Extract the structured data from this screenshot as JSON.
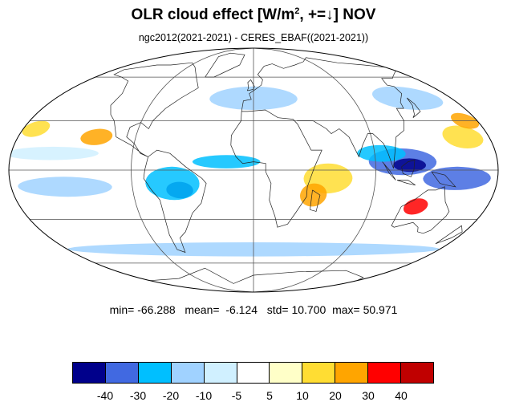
{
  "title": {
    "main": "OLR cloud effect [W/m",
    "sup": "2",
    "rest": ", +=↓]  NOV"
  },
  "subtitle": "ngc2012(2021-2021) - CERES_EBAF((2021-2021))",
  "stats": {
    "min_label": "min=",
    "min": "-66.288",
    "mean_label": "mean=",
    "mean": "-6.124",
    "std_label": "std=",
    "std": "10.700",
    "max_label": "max=",
    "max": "50.971"
  },
  "colorbar": {
    "colors": [
      "#00008b",
      "#4169e1",
      "#00bfff",
      "#a0d2ff",
      "#d0f0ff",
      "#ffffff",
      "#ffffc8",
      "#ffdd33",
      "#ffa500",
      "#ff0000",
      "#c00000"
    ],
    "labels": [
      "-40",
      "-30",
      "-20",
      "-10",
      "-5",
      "5",
      "10",
      "20",
      "30",
      "40"
    ]
  },
  "map": {
    "projection": "Mollweide",
    "blobs": [
      {
        "lon": 110,
        "lat": 5,
        "rlon": 25,
        "rlat": 8,
        "color": "#4169e1"
      },
      {
        "lon": 115,
        "lat": 3,
        "rlon": 12,
        "rlat": 4,
        "color": "#00008b"
      },
      {
        "lon": 150,
        "lat": -5,
        "rlon": 25,
        "rlat": 7,
        "color": "#4169e1"
      },
      {
        "lon": 95,
        "lat": 10,
        "rlon": 18,
        "rlat": 5,
        "color": "#00bfff"
      },
      {
        "lon": 125,
        "lat": -22,
        "rlon": 9,
        "rlat": 5,
        "color": "#ff0000"
      },
      {
        "lon": 55,
        "lat": -5,
        "rlon": 18,
        "rlat": 9,
        "color": "#ffdd33"
      },
      {
        "lon": 45,
        "lat": -15,
        "rlon": 10,
        "rlat": 7,
        "color": "#ffa500"
      },
      {
        "lon": -55,
        "lat": -12,
        "rlon": 10,
        "rlat": 5,
        "color": "#00008b"
      },
      {
        "lon": -60,
        "lat": -8,
        "rlon": 20,
        "rlat": 10,
        "color": "#00bfff"
      },
      {
        "lon": -120,
        "lat": 20,
        "rlon": 12,
        "rlat": 5,
        "color": "#ffa500"
      },
      {
        "lon": 160,
        "lat": 20,
        "rlon": 15,
        "rlat": 7,
        "color": "#ffdd33"
      },
      {
        "lon": -170,
        "lat": 25,
        "rlon": 10,
        "rlat": 5,
        "color": "#ffdd33"
      },
      {
        "lon": 0,
        "lat": 45,
        "rlon": 40,
        "rlat": 8,
        "color": "#a0d2ff"
      },
      {
        "lon": 140,
        "lat": 45,
        "rlon": 30,
        "rlat": 8,
        "color": "#a0d2ff"
      },
      {
        "lon": -140,
        "lat": -10,
        "rlon": 35,
        "rlat": 6,
        "color": "#a0d2ff"
      },
      {
        "lon": 0,
        "lat": -50,
        "rlon": 180,
        "rlat": 5,
        "color": "#a0d2ff"
      },
      {
        "lon": -20,
        "lat": 5,
        "rlon": 25,
        "rlat": 4,
        "color": "#00bfff"
      },
      {
        "lon": 170,
        "lat": 30,
        "rlon": 10,
        "rlat": 5,
        "color": "#ffa500"
      },
      {
        "lon": -150,
        "lat": 10,
        "rlon": 35,
        "rlat": 4,
        "color": "#d0f0ff"
      }
    ]
  }
}
